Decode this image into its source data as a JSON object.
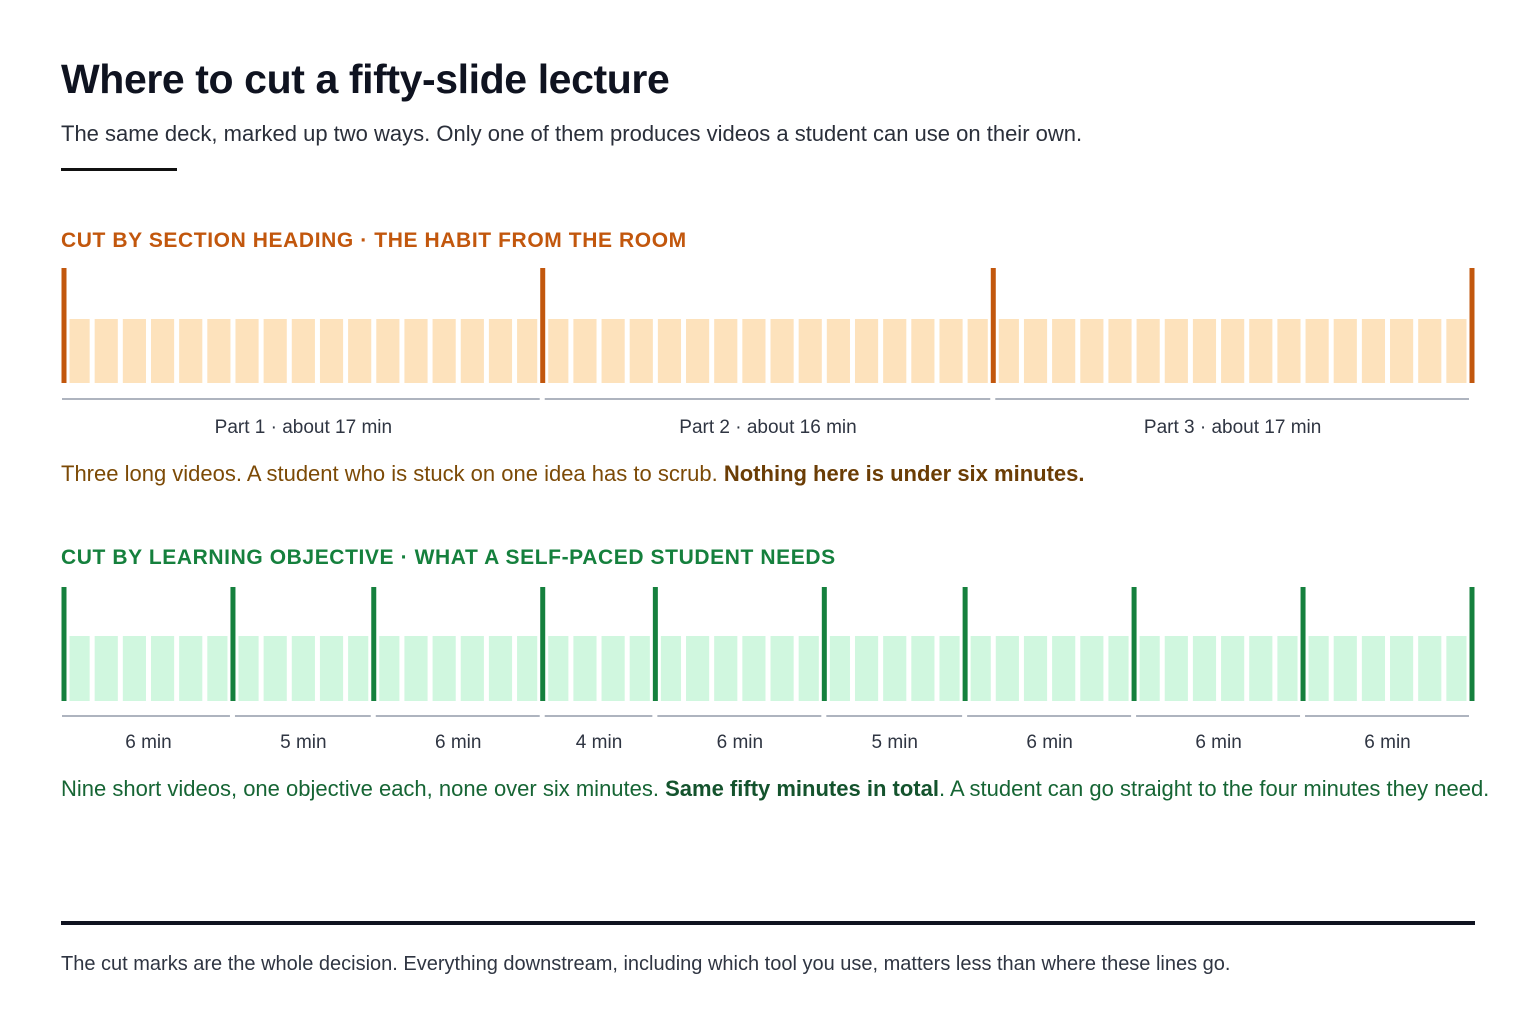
{
  "title": "Where to cut a fifty-slide lecture",
  "subtitle": "The same deck, marked up two ways. Only one of them produces videos a student can use on their own.",
  "colors": {
    "orange_cut": "#c2570d",
    "orange_slide": "#fde2bc",
    "green_cut": "#15803d",
    "green_slide": "#d0f7df",
    "segment_rule": "#aeb4bf",
    "segment_label": "#2f3542"
  },
  "section_heading": {
    "label": "CUT BY SECTION HEADING · THE HABIT FROM THE ROOM",
    "segments": [
      {
        "label": "Part 1 · about 17 min",
        "slides": 17
      },
      {
        "label": "Part 2 · about 16 min",
        "slides": 16
      },
      {
        "label": "Part 3 · about 17 min",
        "slides": 17
      }
    ],
    "note_text": "Three long videos. A student who is stuck on one idea has to scrub. ",
    "note_bold": "Nothing here is under six minutes."
  },
  "learning_objective": {
    "label": "CUT BY LEARNING OBJECTIVE · WHAT A SELF-PACED STUDENT NEEDS",
    "segments": [
      {
        "label": "6 min",
        "slides": 6
      },
      {
        "label": "5 min",
        "slides": 5
      },
      {
        "label": "6 min",
        "slides": 6
      },
      {
        "label": "4 min",
        "slides": 4
      },
      {
        "label": "6 min",
        "slides": 6
      },
      {
        "label": "5 min",
        "slides": 5
      },
      {
        "label": "6 min",
        "slides": 6
      },
      {
        "label": "6 min",
        "slides": 6
      },
      {
        "label": "6 min",
        "slides": 6
      }
    ],
    "note_text": "Nine short videos, one objective each, none over six minutes. ",
    "note_bold": "Same fifty minutes in total",
    "note_tail": ". A student can go straight to the four minutes they need."
  },
  "footer": "The cut marks are the whole decision. Everything downstream, including which tool you use, matters less than where these lines go."
}
